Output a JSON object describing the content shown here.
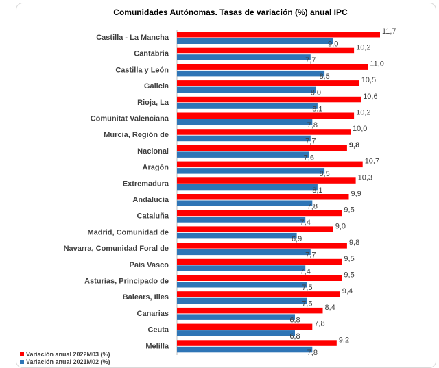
{
  "chart_data": {
    "type": "bar",
    "orientation": "horizontal",
    "title": "Comunidades Autónomas. Tasas de variación (%) anual IPC",
    "xlabel": "",
    "ylabel": "",
    "xlim": [
      0,
      12
    ],
    "grid": false,
    "legend_position": "bottom-left",
    "categories": [
      "Castilla - La Mancha",
      "Cantabria",
      "Castilla y León",
      "Galicia",
      "Rioja, La",
      "Comunitat Valenciana",
      "Murcia, Región de",
      "Nacional",
      "Aragón",
      "Extremadura",
      "Andalucía",
      "Cataluña",
      "Madrid, Comunidad de",
      "Navarra, Comunidad Foral de",
      "País Vasco",
      "Asturias, Principado de",
      "Balears, Illes",
      "Canarias",
      "Ceuta",
      "Melilla"
    ],
    "highlight_category": "Nacional",
    "series": [
      {
        "name": "Variación anual 2022M03 (%)",
        "color": "#ff0000",
        "values": [
          11.7,
          10.2,
          11.0,
          10.5,
          10.6,
          10.2,
          10.0,
          9.8,
          10.7,
          10.3,
          9.9,
          9.5,
          9.0,
          9.8,
          9.5,
          9.5,
          9.4,
          8.4,
          7.8,
          9.2
        ],
        "labels": [
          "11,7",
          "10,2",
          "11,0",
          "10,5",
          "10,6",
          "10,2",
          "10,0",
          "9,8",
          "10,7",
          "10,3",
          "9,9",
          "9,5",
          "9,0",
          "9,8",
          "9,5",
          "9,5",
          "9,4",
          "8,4",
          "7,8",
          "9,2"
        ]
      },
      {
        "name": "Variación anual 2021M02 (%)",
        "color": "#2e75b6",
        "values": [
          9.0,
          7.7,
          8.5,
          8.0,
          8.1,
          7.8,
          7.7,
          7.6,
          8.5,
          8.1,
          7.8,
          7.4,
          6.9,
          7.7,
          7.4,
          7.5,
          7.5,
          6.8,
          6.8,
          7.8
        ],
        "labels": [
          "9,0",
          "7,7",
          "8,5",
          "8,0",
          "8,1",
          "7,8",
          "7,7",
          "7,6",
          "8,5",
          "8,1",
          "7,8",
          "7,4",
          "6,9",
          "7,7",
          "7,4",
          "7,5",
          "7,5",
          "6,8",
          "6,8",
          "7,8"
        ]
      }
    ]
  }
}
